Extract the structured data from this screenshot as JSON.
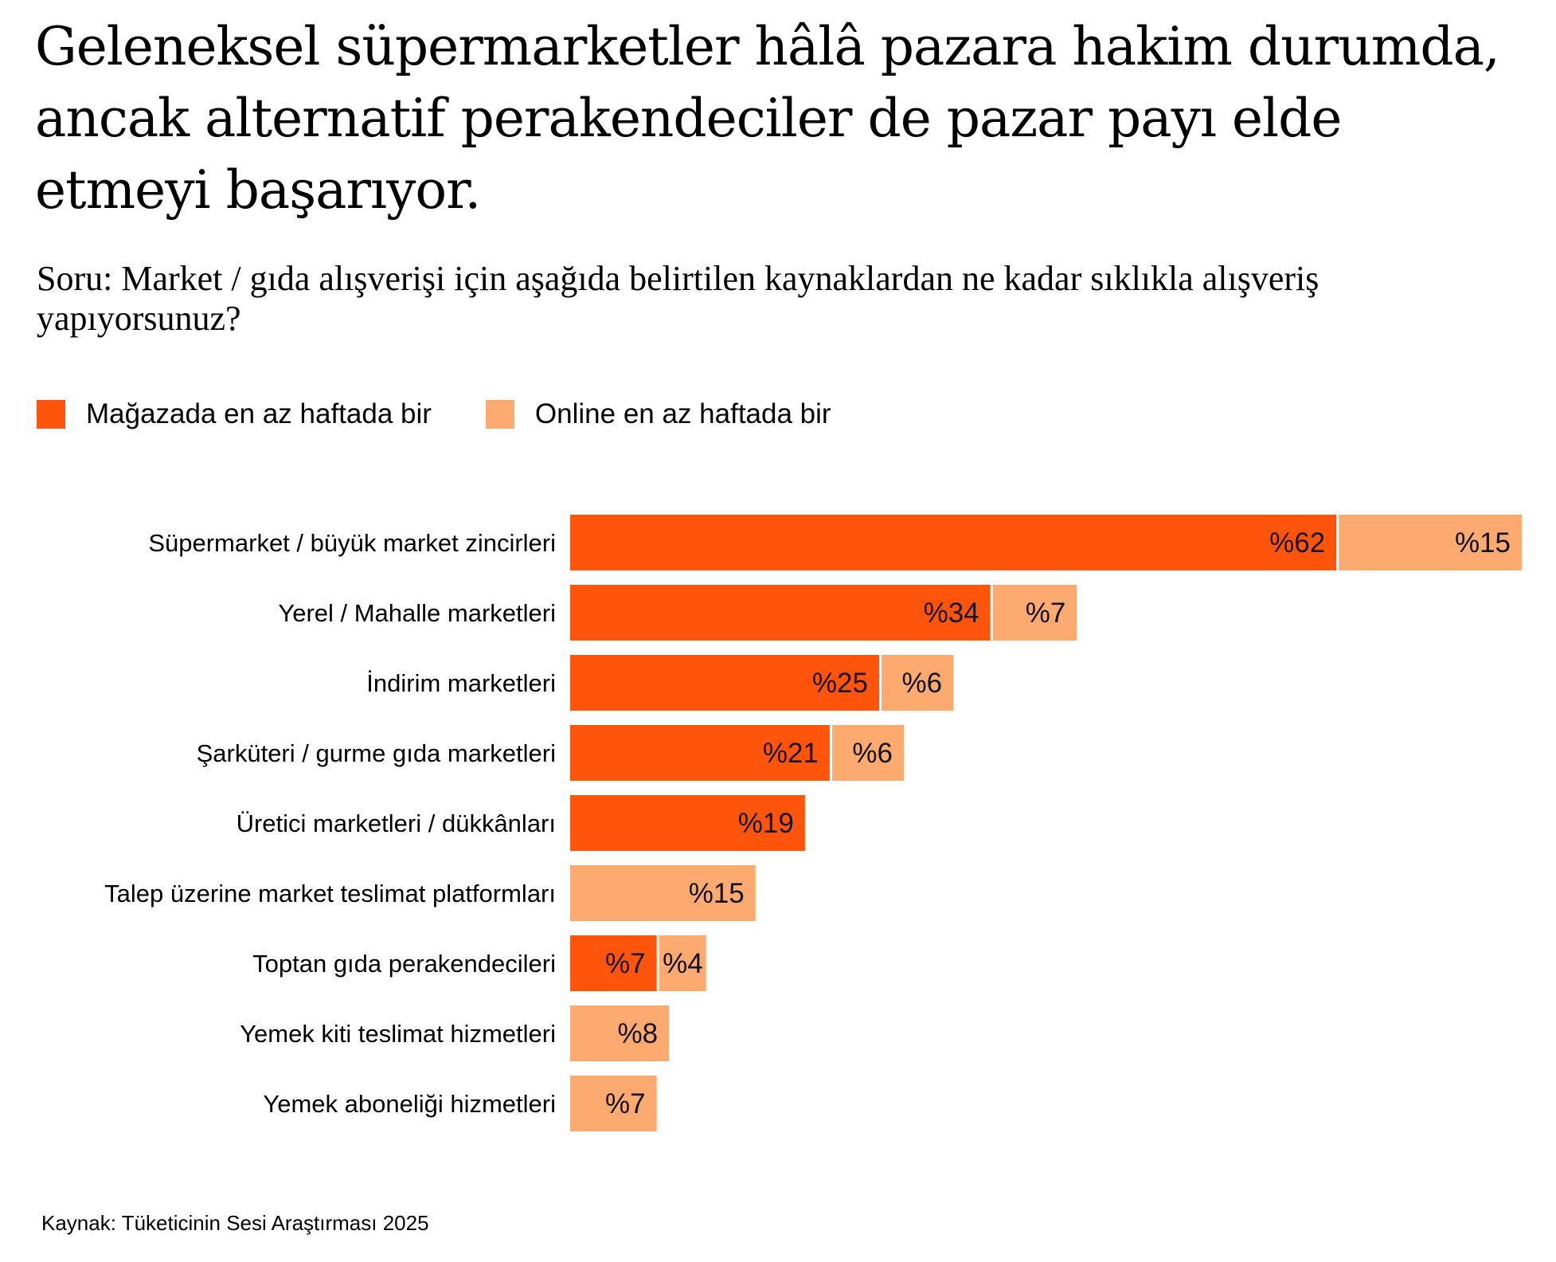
{
  "title": "Geleneksel süpermarketler hâlâ pazara hakim durumda, ancak alternatif perakendeciler de pazar payı elde etmeyi başarıyor.",
  "subtitle": "Soru: Market / gıda alışverişi için aşağıda belirtilen kaynaklardan ne kadar sıklıkla alışveriş yapıyorsunuz?",
  "source": "Kaynak: Tüketicinin Sesi Araştırması 2025",
  "colors": {
    "instore": "#FF540B",
    "online": "#FDAA70"
  },
  "chart_data": {
    "type": "bar",
    "orientation": "horizontal",
    "stacked": true,
    "title": "Geleneksel süpermarketler hâlâ pazara hakim durumda, ancak alternatif perakendeciler de pazar payı elde etmeyi başarıyor.",
    "legend_placement": "top-left",
    "categories": [
      "Süpermarket / büyük market zincirleri",
      "Yerel / Mahalle marketleri",
      "İndirim marketleri",
      "Şarküteri / gurme gıda marketleri",
      "Üretici marketleri / dükkânları",
      "Talep üzerine market teslimat platformları",
      "Toptan gıda perakendecileri",
      "Yemek kiti teslimat hizmetleri",
      "Yemek aboneliği hizmetleri"
    ],
    "series": [
      {
        "name": "Mağazada en az haftada bir",
        "values": [
          62,
          34,
          25,
          21,
          19,
          null,
          7,
          null,
          null
        ]
      },
      {
        "name": "Online en az haftada bir",
        "values": [
          15,
          7,
          6,
          6,
          null,
          15,
          4,
          8,
          7
        ]
      }
    ],
    "label_prefix": "%",
    "xlim": [
      0,
      77
    ],
    "grid": false
  }
}
